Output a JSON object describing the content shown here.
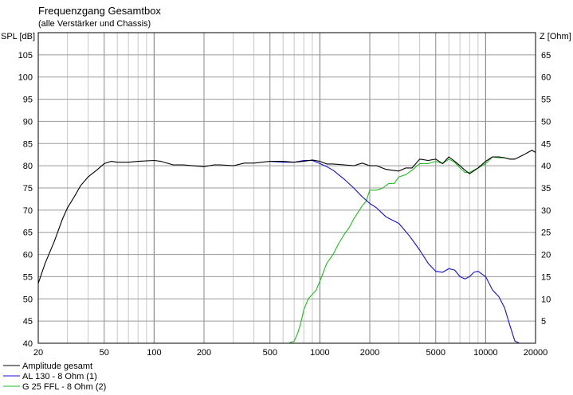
{
  "chart_data": {
    "type": "line",
    "title": "Frequenzgang Gesamtbox",
    "subtitle": "(alle Verstärker und Chassis)",
    "ylabel_left": "SPL [dB]",
    "ylabel_right": "Z [Ohm]",
    "xscale": "log",
    "xlim": [
      20,
      20000
    ],
    "ylim_left": [
      40,
      110
    ],
    "ylim_right": [
      0,
      70
    ],
    "grid": true,
    "legend_position": "bottom-left",
    "x_ticks": [
      20,
      50,
      100,
      200,
      500,
      1000,
      2000,
      5000,
      10000,
      20000
    ],
    "x_tick_labels": [
      "20",
      "50",
      "100",
      "200",
      "500",
      "1000",
      "2000",
      "5000",
      "10000",
      "20000"
    ],
    "y_ticks_left": [
      40,
      45,
      50,
      55,
      60,
      65,
      70,
      75,
      80,
      85,
      90,
      95,
      100,
      105
    ],
    "y_tick_labels_left": [
      "40",
      "45",
      "50",
      "55",
      "60",
      "65",
      "70",
      "75",
      "80",
      "85",
      "90",
      "95",
      "100",
      "105"
    ],
    "y_ticks_right": [
      5,
      10,
      15,
      20,
      25,
      30,
      35,
      40,
      45,
      50,
      55,
      60,
      65
    ],
    "y_tick_labels_right": [
      "5",
      "10",
      "15",
      "20",
      "25",
      "30",
      "35",
      "40",
      "45",
      "50",
      "55",
      "60",
      "65"
    ],
    "series": [
      {
        "name": "Amplitude gesamt",
        "color": "#000000",
        "x": [
          20,
          22,
          25,
          28,
          30,
          33,
          36,
          40,
          45,
          50,
          55,
          60,
          70,
          80,
          100,
          110,
          130,
          150,
          170,
          200,
          230,
          250,
          300,
          350,
          400,
          500,
          600,
          700,
          800,
          900,
          1000,
          1100,
          1200,
          1400,
          1600,
          1800,
          2000,
          2200,
          2500,
          2700,
          3000,
          3300,
          3600,
          4000,
          4500,
          5000,
          5500,
          6000,
          6500,
          7000,
          7500,
          8000,
          9000,
          10000,
          11000,
          12000,
          13000,
          14000,
          15000,
          16000,
          17000,
          18000,
          19000,
          20000
        ],
        "y": [
          53.5,
          58,
          63,
          68,
          70.5,
          73,
          75.5,
          77.5,
          79,
          80.5,
          81,
          80.8,
          80.8,
          81,
          81.2,
          81,
          80.2,
          80.2,
          80,
          79.8,
          80.2,
          80.2,
          80,
          80.6,
          80.6,
          81,
          81,
          80.8,
          81,
          81.3,
          81,
          80.4,
          80.4,
          80.2,
          80,
          80.6,
          80,
          80,
          79.2,
          79,
          78.8,
          79.5,
          79.5,
          81.5,
          81.2,
          81.5,
          80.5,
          82,
          81,
          80,
          79,
          78.2,
          79.5,
          81,
          82,
          82,
          81.8,
          81.5,
          81.5,
          82,
          82.5,
          83,
          83.5,
          83
        ]
      },
      {
        "name": "AL 130 - 8 Ohm (1)",
        "color": "#1010cc",
        "x": [
          500,
          600,
          700,
          800,
          900,
          1000,
          1100,
          1200,
          1400,
          1600,
          1800,
          2000,
          2200,
          2500,
          3000,
          3500,
          4000,
          4500,
          5000,
          5500,
          6000,
          6500,
          7000,
          7500,
          8000,
          8500,
          9000,
          10000,
          11000,
          12000,
          13000,
          14000,
          15000,
          16000,
          17000,
          18000,
          20000
        ],
        "y": [
          81,
          80.8,
          80.8,
          81.2,
          81.2,
          80.5,
          79.8,
          79,
          77,
          75,
          73,
          71.5,
          70.5,
          68.5,
          67,
          64,
          61,
          58,
          56.2,
          56,
          56.8,
          56.5,
          55,
          54.5,
          55,
          56,
          56.2,
          55,
          52,
          50.5,
          48,
          44,
          40.5,
          40,
          40,
          40,
          40
        ]
      },
      {
        "name": "G 25 FFL - 8 Ohm (2)",
        "color": "#22bb22",
        "x": [
          20,
          100,
          500,
          650,
          700,
          730,
          760,
          800,
          850,
          900,
          950,
          1000,
          1100,
          1200,
          1300,
          1400,
          1500,
          1600,
          1700,
          1800,
          1900,
          2000,
          2200,
          2400,
          2600,
          2800,
          3000,
          3300,
          3600,
          4000,
          4500,
          5000,
          5500,
          6000,
          6500,
          7000,
          7500,
          8000,
          9000,
          10000,
          11000,
          12000,
          13000,
          14000,
          15000
        ],
        "y": [
          40,
          40,
          40,
          40,
          40.5,
          42,
          44,
          47.5,
          50,
          51,
          52,
          54,
          58,
          60,
          62.5,
          64.5,
          66,
          68,
          69.5,
          71,
          72,
          74.5,
          74.5,
          75,
          76,
          76,
          77.5,
          78,
          79,
          80.5,
          80.5,
          81,
          80.5,
          81.5,
          80.8,
          79.5,
          78.5,
          78.5,
          79.5,
          80.5,
          82,
          81.8,
          81.8,
          81.5,
          81.5
        ]
      }
    ]
  }
}
